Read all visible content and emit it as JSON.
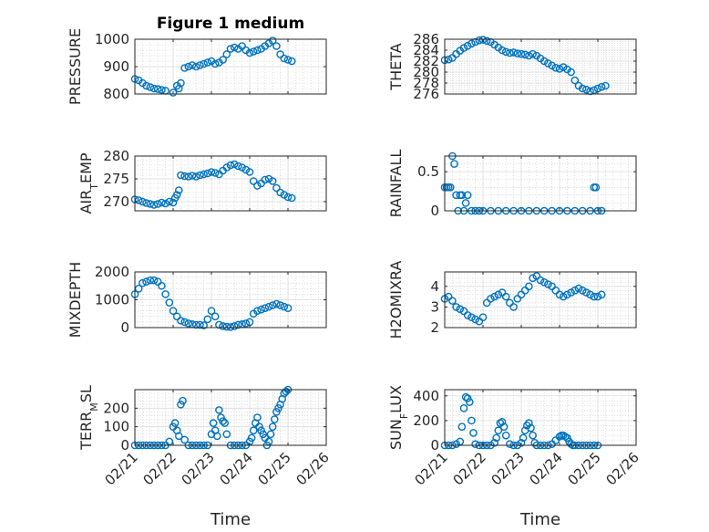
{
  "chart_data": [
    {
      "type": "scatter",
      "title": "Figure 1 medium",
      "xlabel": "",
      "ylabel": "PRESSURE",
      "xlim": [
        "02/21",
        "02/26"
      ],
      "ylim": [
        800,
        1000
      ],
      "yticks": [
        800,
        900,
        1000
      ],
      "xticks": [
        "02/21",
        "02/22",
        "02/23",
        "02/24",
        "02/25",
        "02/26"
      ],
      "show_xticklabels": false,
      "grid": "major+minor",
      "series": [
        {
          "color": "#0072BD",
          "marker": "circle",
          "x": [
            0.0,
            0.1,
            0.2,
            0.3,
            0.4,
            0.5,
            0.6,
            0.7,
            0.8,
            1.0,
            1.1,
            1.15,
            1.2,
            1.3,
            1.4,
            1.5,
            1.6,
            1.7,
            1.8,
            1.9,
            2.0,
            2.1,
            2.2,
            2.3,
            2.4,
            2.5,
            2.6,
            2.7,
            2.8,
            2.9,
            3.0,
            3.1,
            3.2,
            3.3,
            3.4,
            3.5,
            3.6,
            3.7,
            3.8,
            3.9,
            4.0,
            4.1
          ],
          "y": [
            855,
            850,
            840,
            830,
            825,
            820,
            818,
            815,
            812,
            805,
            830,
            820,
            840,
            895,
            900,
            905,
            900,
            905,
            910,
            915,
            920,
            910,
            915,
            925,
            945,
            965,
            970,
            965,
            975,
            960,
            950,
            955,
            960,
            965,
            975,
            985,
            995,
            975,
            945,
            930,
            925,
            920
          ]
        }
      ]
    },
    {
      "type": "scatter",
      "title": "",
      "xlabel": "",
      "ylabel": "THETA",
      "xlim": [
        "02/21",
        "02/26"
      ],
      "ylim": [
        276,
        286
      ],
      "yticks": [
        276,
        278,
        280,
        282,
        284,
        286
      ],
      "xticks": [
        "02/21",
        "02/22",
        "02/23",
        "02/24",
        "02/25",
        "02/26"
      ],
      "show_xticklabels": false,
      "grid": "major+minor",
      "series": [
        {
          "color": "#0072BD",
          "marker": "circle",
          "x": [
            0.0,
            0.1,
            0.2,
            0.3,
            0.4,
            0.5,
            0.6,
            0.7,
            0.8,
            0.9,
            1.0,
            1.1,
            1.2,
            1.3,
            1.4,
            1.5,
            1.6,
            1.7,
            1.8,
            1.9,
            2.0,
            2.1,
            2.2,
            2.3,
            2.4,
            2.5,
            2.6,
            2.7,
            2.8,
            2.9,
            3.0,
            3.1,
            3.2,
            3.3,
            3.4,
            3.5,
            3.6,
            3.7,
            3.8,
            3.9,
            4.0,
            4.1,
            4.2
          ],
          "y": [
            282.2,
            282.3,
            282.6,
            283.3,
            283.9,
            284.4,
            284.8,
            285.2,
            285.5,
            285.8,
            285.9,
            285.7,
            285.5,
            285.0,
            284.5,
            284.0,
            283.7,
            283.5,
            283.6,
            283.4,
            283.3,
            283.2,
            283.0,
            283.3,
            283.0,
            282.5,
            282.0,
            281.6,
            281.2,
            280.8,
            280.6,
            280.9,
            280.5,
            280.0,
            278.5,
            277.5,
            277.0,
            276.8,
            276.5,
            276.7,
            277.0,
            277.3,
            277.5
          ]
        }
      ]
    },
    {
      "type": "scatter",
      "title": "",
      "xlabel": "",
      "ylabel": "AIR_TEMP",
      "xlim": [
        "02/21",
        "02/26"
      ],
      "ylim": [
        268,
        280
      ],
      "yticks": [
        270,
        275,
        280
      ],
      "xticks": [
        "02/21",
        "02/22",
        "02/23",
        "02/24",
        "02/25",
        "02/26"
      ],
      "show_xticklabels": false,
      "grid": "major+minor",
      "series": [
        {
          "color": "#0072BD",
          "marker": "circle",
          "x": [
            0.0,
            0.1,
            0.2,
            0.3,
            0.4,
            0.5,
            0.6,
            0.7,
            0.8,
            0.9,
            1.0,
            1.05,
            1.1,
            1.15,
            1.2,
            1.3,
            1.4,
            1.5,
            1.6,
            1.7,
            1.8,
            1.9,
            2.0,
            2.1,
            2.2,
            2.3,
            2.4,
            2.5,
            2.6,
            2.7,
            2.8,
            2.9,
            3.0,
            3.1,
            3.2,
            3.3,
            3.4,
            3.5,
            3.6,
            3.7,
            3.8,
            3.9,
            4.0,
            4.1
          ],
          "y": [
            270.5,
            270.3,
            270.0,
            269.7,
            269.5,
            269.3,
            269.5,
            269.8,
            269.6,
            270.0,
            269.8,
            270.8,
            271.5,
            272.5,
            275.8,
            275.6,
            275.5,
            275.7,
            275.5,
            275.8,
            276.0,
            276.2,
            276.5,
            276.3,
            276.0,
            276.8,
            277.5,
            278.0,
            278.2,
            277.8,
            277.5,
            277.0,
            276.5,
            274.5,
            273.5,
            274.0,
            274.8,
            275.0,
            274.5,
            273.0,
            272.0,
            271.5,
            271.0,
            270.8
          ]
        }
      ]
    },
    {
      "type": "scatter",
      "title": "",
      "xlabel": "",
      "ylabel": "RAINFALL",
      "xlim": [
        "02/21",
        "02/26"
      ],
      "ylim": [
        0,
        0.7
      ],
      "yticks": [
        0,
        0.5
      ],
      "xticks": [
        "02/21",
        "02/22",
        "02/23",
        "02/24",
        "02/25",
        "02/26"
      ],
      "show_xticklabels": false,
      "grid": "major+minor",
      "series": [
        {
          "color": "#0072BD",
          "marker": "circle",
          "x": [
            0.0,
            0.05,
            0.1,
            0.15,
            0.2,
            0.25,
            0.3,
            0.35,
            0.4,
            0.45,
            0.5,
            0.55,
            0.6,
            0.7,
            0.8,
            0.9,
            1.0,
            1.2,
            1.4,
            1.6,
            1.8,
            2.0,
            2.2,
            2.4,
            2.6,
            2.8,
            3.0,
            3.2,
            3.4,
            3.6,
            3.8,
            3.9,
            3.95,
            4.0,
            4.1
          ],
          "y": [
            0.3,
            0.3,
            0.3,
            0.3,
            0.7,
            0.6,
            0.2,
            0.0,
            0.2,
            0.2,
            0.0,
            0.1,
            0.2,
            0.0,
            0.0,
            0.0,
            0.0,
            0.0,
            0.0,
            0.0,
            0.0,
            0.0,
            0.0,
            0.0,
            0.0,
            0.0,
            0.0,
            0.0,
            0.0,
            0.0,
            0.0,
            0.3,
            0.3,
            0.0,
            0.0
          ]
        }
      ]
    },
    {
      "type": "scatter",
      "title": "",
      "xlabel": "",
      "ylabel": "MIXDEPTH",
      "xlim": [
        "02/21",
        "02/26"
      ],
      "ylim": [
        0,
        2000
      ],
      "yticks": [
        0,
        1000,
        2000
      ],
      "xticks": [
        "02/21",
        "02/22",
        "02/23",
        "02/24",
        "02/25",
        "02/26"
      ],
      "show_xticklabels": false,
      "grid": "major+minor",
      "series": [
        {
          "color": "#0072BD",
          "marker": "circle",
          "x": [
            0.0,
            0.1,
            0.2,
            0.3,
            0.4,
            0.5,
            0.6,
            0.7,
            0.8,
            0.9,
            1.0,
            1.1,
            1.2,
            1.3,
            1.4,
            1.5,
            1.6,
            1.7,
            1.8,
            1.9,
            2.0,
            2.1,
            2.2,
            2.3,
            2.4,
            2.5,
            2.6,
            2.7,
            2.8,
            2.9,
            3.0,
            3.1,
            3.2,
            3.3,
            3.4,
            3.5,
            3.6,
            3.7,
            3.8,
            3.9,
            4.0
          ],
          "y": [
            1200,
            1400,
            1600,
            1650,
            1700,
            1700,
            1650,
            1500,
            1200,
            900,
            600,
            400,
            250,
            200,
            150,
            120,
            100,
            100,
            80,
            300,
            600,
            400,
            100,
            50,
            30,
            20,
            50,
            100,
            120,
            150,
            200,
            500,
            600,
            650,
            700,
            750,
            800,
            850,
            800,
            750,
            700
          ]
        }
      ]
    },
    {
      "type": "scatter",
      "title": "",
      "xlabel": "",
      "ylabel": "H2OMIXRA",
      "xlim": [
        "02/21",
        "02/26"
      ],
      "ylim": [
        2,
        4.7
      ],
      "yticks": [
        2,
        3,
        4
      ],
      "xticks": [
        "02/21",
        "02/22",
        "02/23",
        "02/24",
        "02/25",
        "02/26"
      ],
      "show_xticklabels": false,
      "grid": "major+minor",
      "series": [
        {
          "color": "#0072BD",
          "marker": "circle",
          "x": [
            0.0,
            0.1,
            0.2,
            0.3,
            0.4,
            0.5,
            0.6,
            0.7,
            0.8,
            0.9,
            1.0,
            1.1,
            1.2,
            1.3,
            1.4,
            1.5,
            1.6,
            1.7,
            1.8,
            1.9,
            2.0,
            2.1,
            2.2,
            2.3,
            2.4,
            2.5,
            2.6,
            2.7,
            2.8,
            2.9,
            3.0,
            3.1,
            3.2,
            3.3,
            3.4,
            3.5,
            3.6,
            3.7,
            3.8,
            3.9,
            4.0,
            4.1
          ],
          "y": [
            3.4,
            3.5,
            3.3,
            3.0,
            2.9,
            2.8,
            2.6,
            2.5,
            2.4,
            2.3,
            2.5,
            3.2,
            3.4,
            3.5,
            3.6,
            3.7,
            3.5,
            3.2,
            3.0,
            3.4,
            3.6,
            3.8,
            4.0,
            4.4,
            4.5,
            4.3,
            4.2,
            4.1,
            4.0,
            3.8,
            3.6,
            3.5,
            3.6,
            3.7,
            3.8,
            3.9,
            3.8,
            3.7,
            3.6,
            3.5,
            3.5,
            3.6
          ]
        }
      ]
    },
    {
      "type": "scatter",
      "title": "",
      "xlabel": "Time",
      "ylabel": "TERR_MSL",
      "xlim": [
        "02/21",
        "02/26"
      ],
      "ylim": [
        0,
        300
      ],
      "yticks": [
        0,
        100,
        200
      ],
      "xticks": [
        "02/21",
        "02/22",
        "02/23",
        "02/24",
        "02/25",
        "02/26"
      ],
      "show_xticklabels": true,
      "grid": "major+minor",
      "series": [
        {
          "color": "#0072BD",
          "marker": "circle",
          "x": [
            0.0,
            0.1,
            0.2,
            0.3,
            0.4,
            0.5,
            0.6,
            0.7,
            0.8,
            0.9,
            1.0,
            1.05,
            1.1,
            1.15,
            1.2,
            1.25,
            1.3,
            1.4,
            1.5,
            1.6,
            1.7,
            1.8,
            1.9,
            2.0,
            2.05,
            2.1,
            2.15,
            2.2,
            2.25,
            2.3,
            2.35,
            2.4,
            2.5,
            2.6,
            2.7,
            2.8,
            2.9,
            3.0,
            3.05,
            3.1,
            3.15,
            3.2,
            3.25,
            3.3,
            3.35,
            3.4,
            3.45,
            3.5,
            3.55,
            3.6,
            3.65,
            3.7,
            3.75,
            3.8,
            3.85,
            3.9,
            3.95,
            4.0
          ],
          "y": [
            0,
            0,
            0,
            0,
            0,
            0,
            0,
            0,
            0,
            20,
            100,
            120,
            80,
            50,
            220,
            240,
            30,
            0,
            0,
            0,
            0,
            0,
            0,
            60,
            120,
            80,
            50,
            190,
            150,
            130,
            120,
            60,
            0,
            0,
            0,
            0,
            0,
            20,
            40,
            80,
            120,
            150,
            100,
            80,
            60,
            40,
            0,
            20,
            60,
            100,
            140,
            180,
            200,
            220,
            250,
            280,
            290,
            300
          ]
        }
      ]
    },
    {
      "type": "scatter",
      "title": "",
      "xlabel": "Time",
      "ylabel": "SUN_FLUX",
      "xlim": [
        "02/21",
        "02/26"
      ],
      "ylim": [
        0,
        450
      ],
      "yticks": [
        0,
        200,
        400
      ],
      "xticks": [
        "02/21",
        "02/22",
        "02/23",
        "02/24",
        "02/25",
        "02/26"
      ],
      "show_xticklabels": true,
      "grid": "major+minor",
      "series": [
        {
          "color": "#0072BD",
          "marker": "circle",
          "x": [
            0.0,
            0.1,
            0.2,
            0.3,
            0.4,
            0.45,
            0.5,
            0.55,
            0.6,
            0.65,
            0.7,
            0.75,
            0.8,
            0.9,
            1.0,
            1.1,
            1.2,
            1.3,
            1.35,
            1.4,
            1.45,
            1.5,
            1.55,
            1.6,
            1.7,
            1.8,
            1.9,
            2.0,
            2.05,
            2.1,
            2.15,
            2.2,
            2.25,
            2.3,
            2.35,
            2.4,
            2.5,
            2.6,
            2.7,
            2.8,
            2.9,
            3.0,
            3.05,
            3.1,
            3.15,
            3.2,
            3.25,
            3.3,
            3.35,
            3.4,
            3.5,
            3.6,
            3.7,
            3.8,
            3.9,
            4.0
          ],
          "y": [
            0,
            0,
            0,
            10,
            30,
            150,
            300,
            390,
            380,
            350,
            200,
            100,
            10,
            0,
            0,
            0,
            0,
            20,
            60,
            120,
            180,
            190,
            150,
            80,
            10,
            0,
            0,
            20,
            60,
            120,
            160,
            180,
            140,
            80,
            20,
            0,
            0,
            0,
            0,
            10,
            40,
            70,
            80,
            80,
            70,
            60,
            30,
            10,
            0,
            0,
            0,
            0,
            0,
            0,
            0,
            0
          ]
        }
      ]
    }
  ]
}
